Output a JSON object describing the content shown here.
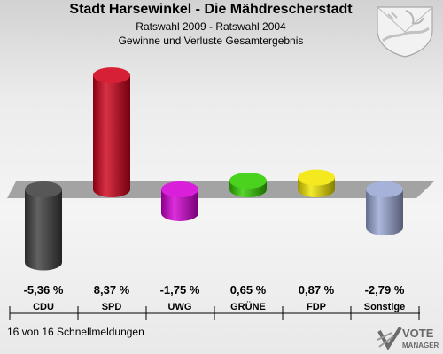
{
  "header": {
    "title": "Stadt Harsewinkel - Die Mähdrescherstadt",
    "subtitle": "Ratswahl 2009 - Ratswahl 2004",
    "subtitle2": "Gewinne und Verluste Gesamtergebnis"
  },
  "footer": {
    "reports": "16 von 16 Schnellmeldungen"
  },
  "brand": {
    "line1": "VOTE",
    "line2": "MANAGER"
  },
  "chart_data": {
    "type": "bar",
    "categories": [
      "CDU",
      "SPD",
      "UWG",
      "GRÜNE",
      "FDP",
      "Sonstige"
    ],
    "values": [
      -5.36,
      8.37,
      -1.75,
      0.65,
      0.87,
      -2.79
    ],
    "value_labels": [
      "-5,36 %",
      "8,37 %",
      "-1,75 %",
      "0,65 %",
      "0,87 %",
      "-2,79 %"
    ],
    "colors": [
      "#404040",
      "#d0021b",
      "#d400d4",
      "#33cc00",
      "#f2e600",
      "#9aa8d4"
    ],
    "title": "Gewinne und Verluste Gesamtergebnis",
    "grid": false,
    "legend": "none"
  }
}
